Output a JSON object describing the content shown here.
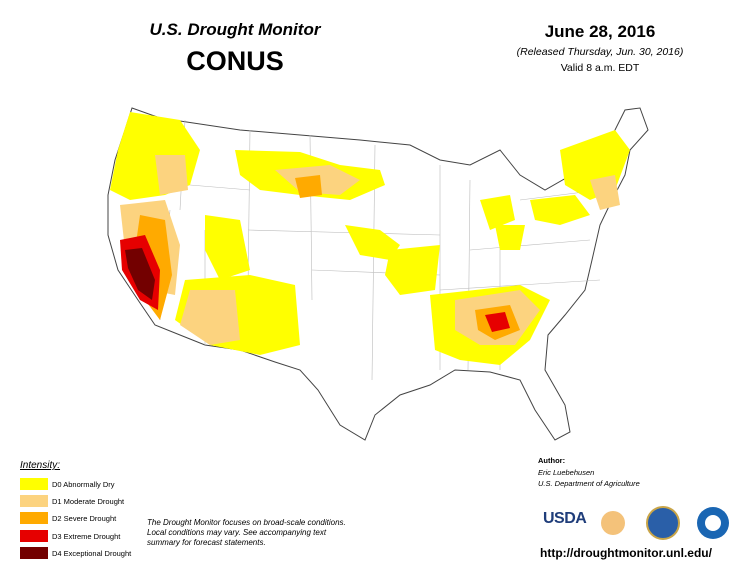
{
  "header": {
    "title": "U.S. Drought Monitor",
    "region": "CONUS",
    "date": "June 28, 2016",
    "released": "(Released Thursday, Jun. 30, 2016)",
    "valid": "Valid 8 a.m. EDT"
  },
  "legend": {
    "title": "Intensity:",
    "items": [
      "D0 Abnormally Dry",
      "D1 Moderate Drought",
      "D2 Severe Drought",
      "D3 Extreme Drought",
      "D4 Exceptional Drought"
    ]
  },
  "note": "The Drought Monitor focuses on broad-scale conditions. Local conditions may vary. See accompanying text summary for forecast statements.",
  "author": {
    "label": "Author:",
    "name": "Eric Luebehusen",
    "org": "U.S. Department of Agriculture"
  },
  "logos": {
    "usda": "USDA"
  },
  "url": "http://droughtmonitor.unl.edu/"
}
